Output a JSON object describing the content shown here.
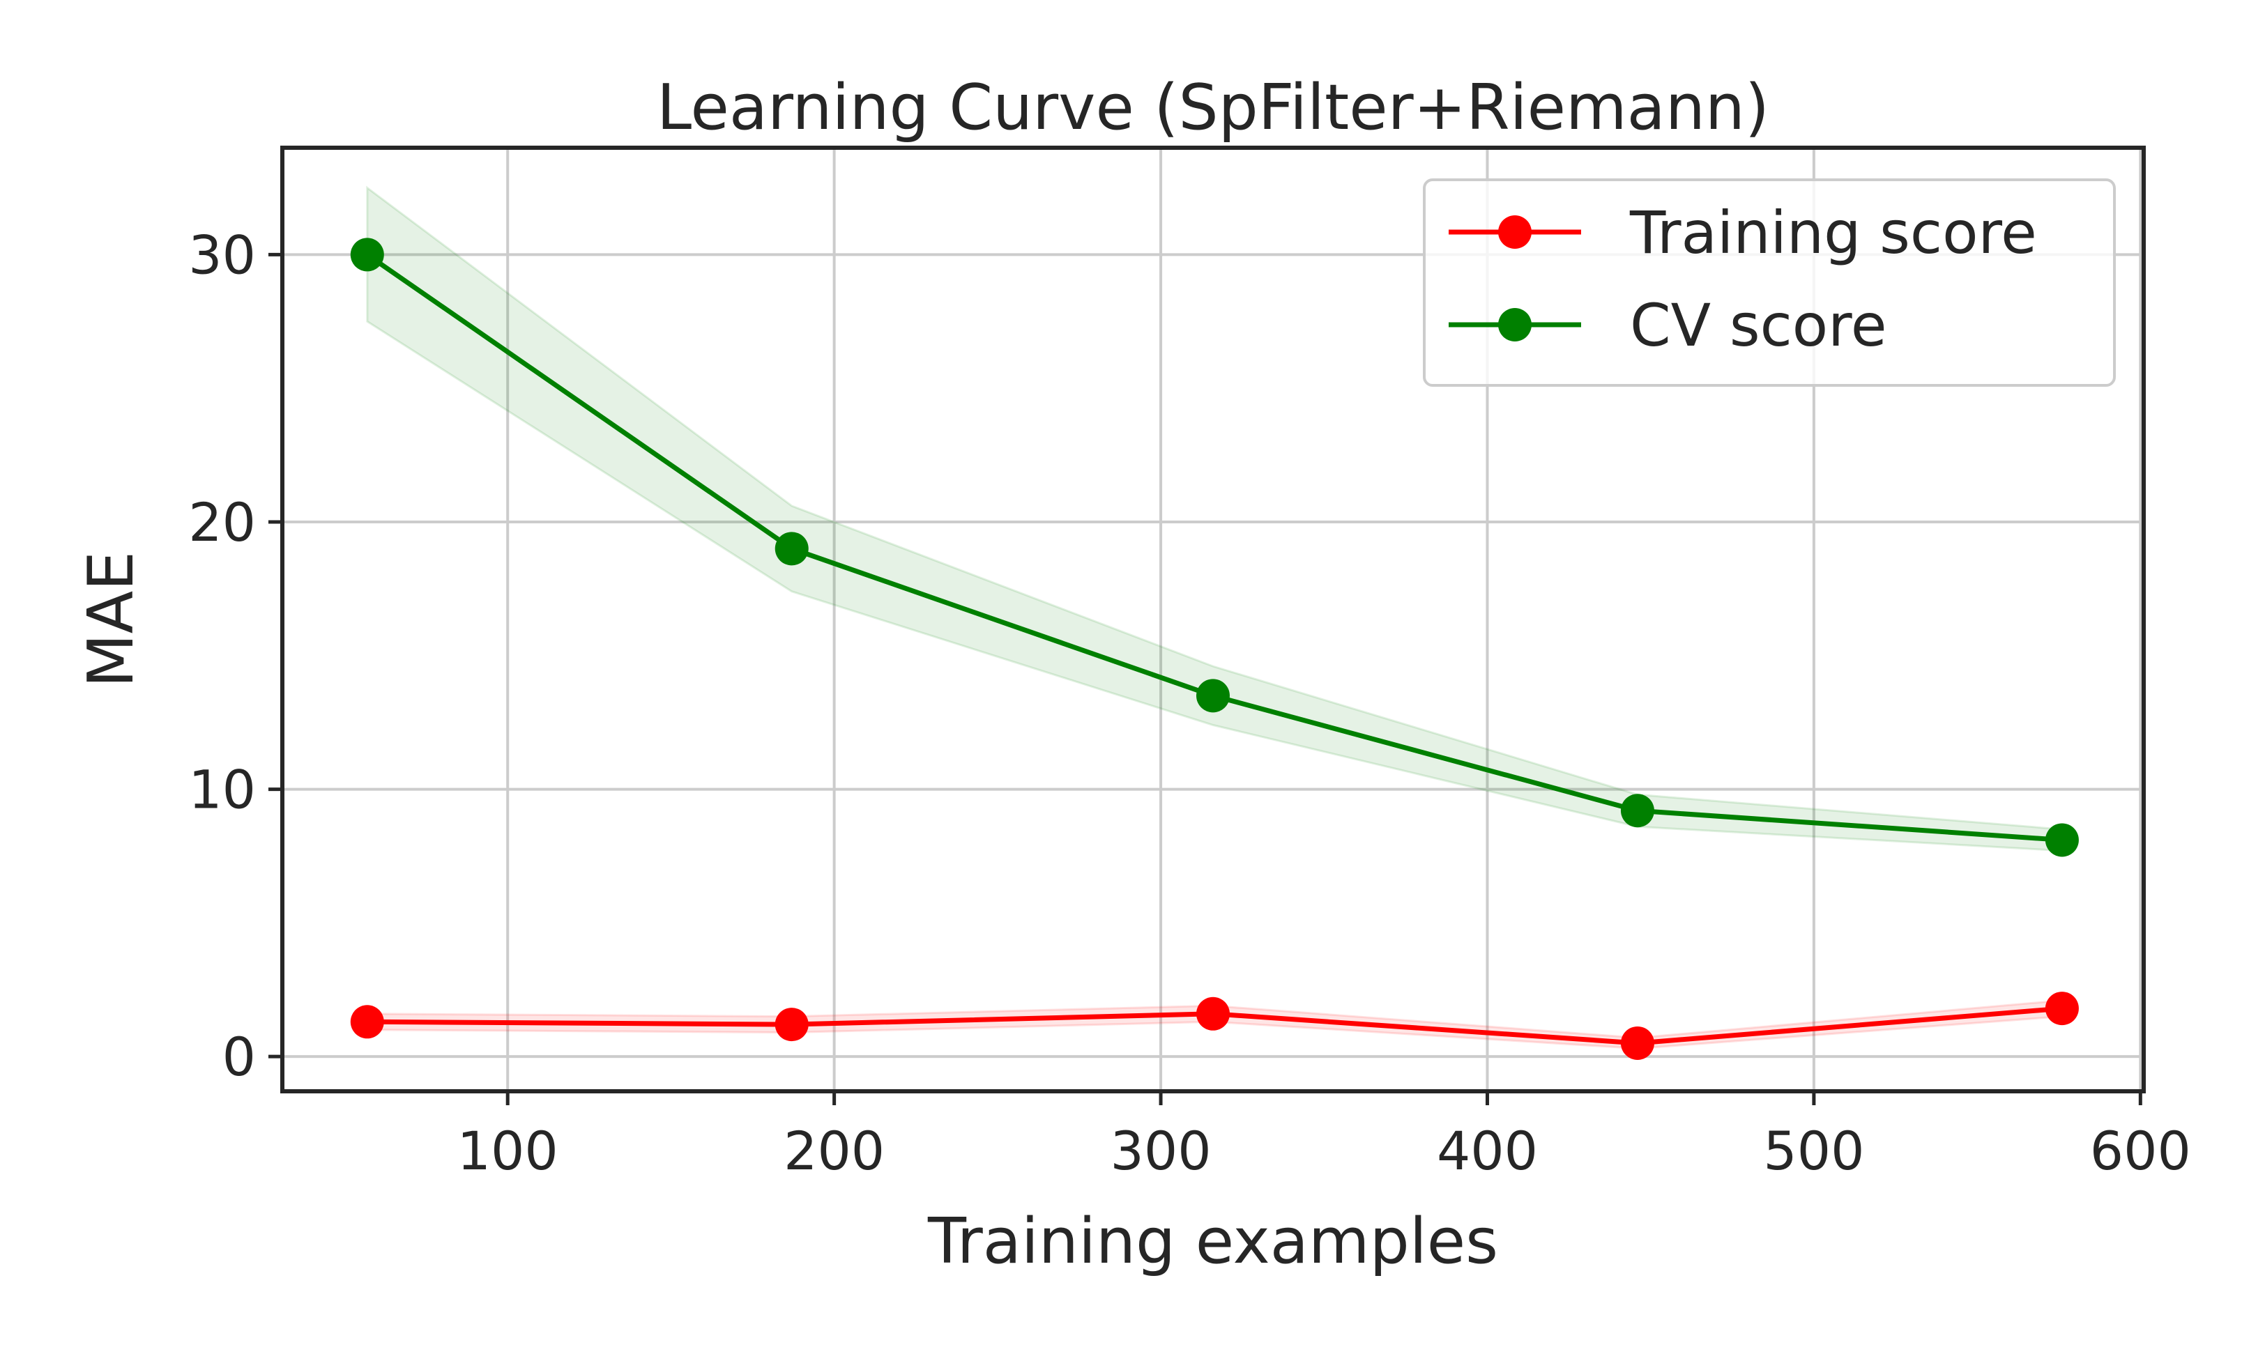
{
  "chart_data": {
    "type": "line",
    "title": "Learning Curve (SpFilter+Riemann)",
    "xlabel": "Training examples",
    "ylabel": "MAE",
    "xlim": [
      31,
      601
    ],
    "ylim": [
      -1.3,
      34
    ],
    "xticks": [
      100,
      200,
      300,
      400,
      500,
      600
    ],
    "yticks": [
      0,
      10,
      20,
      30
    ],
    "grid": true,
    "legend_position": "top-right",
    "x": [
      57,
      187,
      316,
      446,
      576
    ],
    "series": [
      {
        "name": "Training score",
        "color": "#ff0000",
        "values": [
          1.3,
          1.2,
          1.6,
          0.5,
          1.8
        ],
        "band_lower": [
          1.0,
          0.9,
          1.3,
          0.3,
          1.5
        ],
        "band_upper": [
          1.6,
          1.5,
          1.9,
          0.7,
          2.1
        ]
      },
      {
        "name": "CV score",
        "color": "#008000",
        "values": [
          30.0,
          19.0,
          13.5,
          9.2,
          8.1
        ],
        "band_lower": [
          27.5,
          17.4,
          12.4,
          8.6,
          7.7
        ],
        "band_upper": [
          32.5,
          20.6,
          14.6,
          9.8,
          8.5
        ]
      }
    ]
  }
}
